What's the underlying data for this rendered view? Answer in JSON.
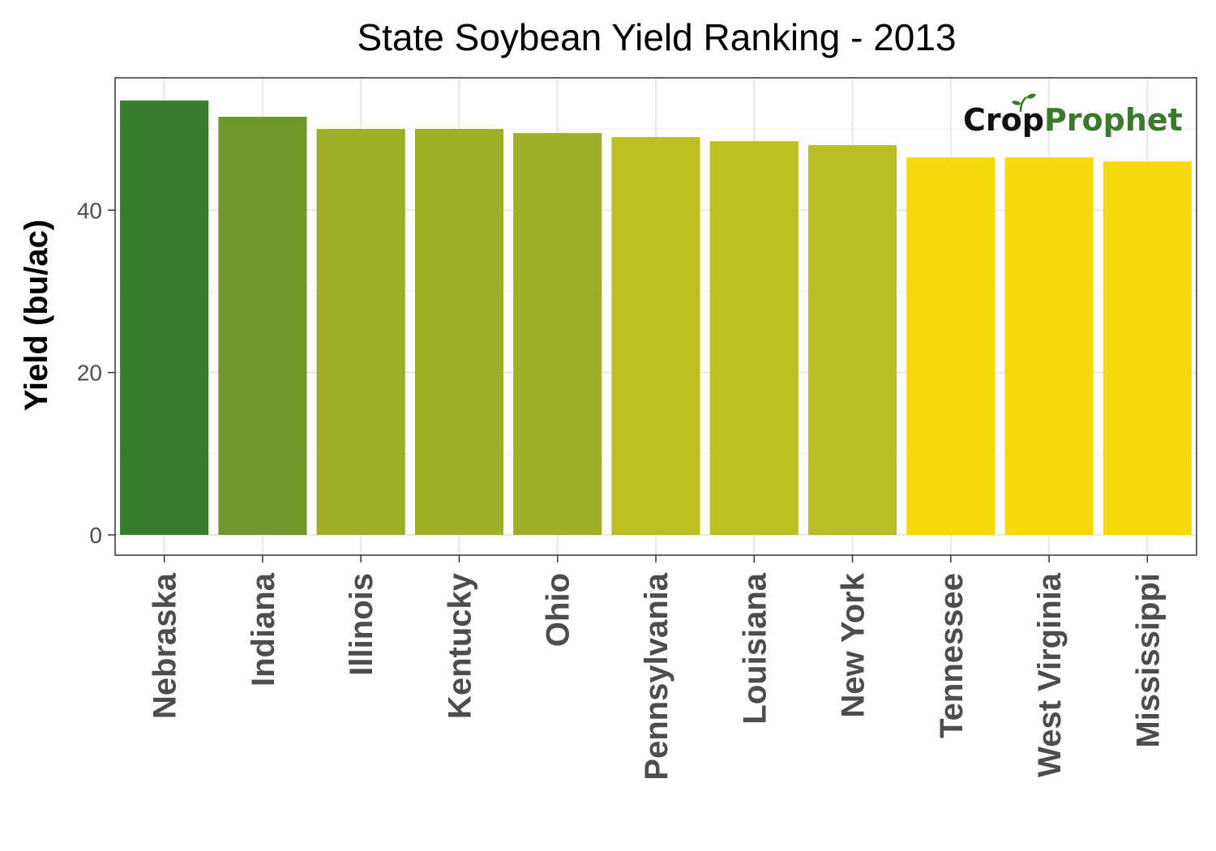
{
  "chart_data": {
    "type": "bar",
    "title": "State Soybean Yield Ranking - 2013",
    "xlabel": "",
    "ylabel": "Yield (bu/ac)",
    "categories": [
      "Nebraska",
      "Indiana",
      "Illinois",
      "Kentucky",
      "Ohio",
      "Pennsylvania",
      "Louisiana",
      "New York",
      "Tennessee",
      "West Virginia",
      "Mississippi"
    ],
    "values": [
      53.5,
      51.5,
      50.0,
      50.0,
      49.5,
      49.0,
      48.5,
      48.0,
      46.5,
      46.5,
      46.0
    ],
    "bar_colors": [
      "#387d2e",
      "#70972a",
      "#9eae27",
      "#9eae27",
      "#9eae27",
      "#bbbf21",
      "#bbbf21",
      "#b8be24",
      "#f5d90a",
      "#f5d90a",
      "#f5d90a"
    ],
    "ylim": [
      -2.5,
      56.3
    ],
    "yticks": [
      0,
      20,
      40
    ],
    "ytick_labels": [
      "0",
      "20",
      "40"
    ],
    "grid": true,
    "legend": "none"
  },
  "logo": {
    "crop_text": "Cr",
    "crop_o": "o",
    "crop_p": "p",
    "prophet_text": "Prophet",
    "colors": {
      "dark": "#111111",
      "green": "#3a7a2e"
    }
  }
}
